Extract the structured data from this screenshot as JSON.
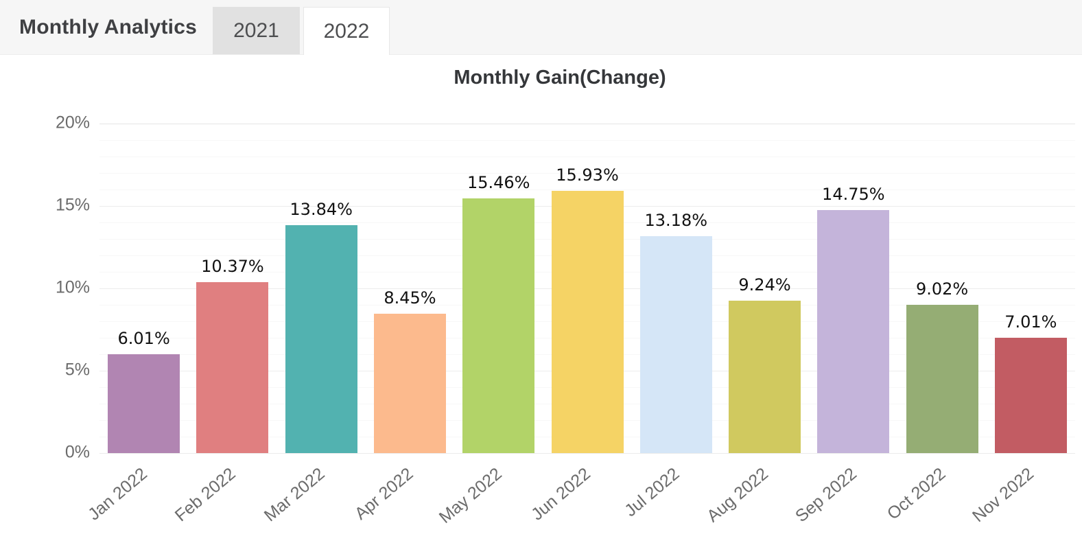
{
  "header": {
    "title": "Monthly Analytics",
    "tabs": [
      {
        "label": "2021",
        "active": false
      },
      {
        "label": "2022",
        "active": true
      }
    ]
  },
  "chart_data": {
    "type": "bar",
    "title": "Monthly Gain(Change)",
    "categories": [
      "Jan 2022",
      "Feb 2022",
      "Mar 2022",
      "Apr 2022",
      "May 2022",
      "Jun 2022",
      "Jul 2022",
      "Aug 2022",
      "Sep 2022",
      "Oct 2022",
      "Nov 2022"
    ],
    "values": [
      6.01,
      10.37,
      13.84,
      8.45,
      15.46,
      15.93,
      13.18,
      9.24,
      14.75,
      9.02,
      7.01
    ],
    "value_labels": [
      "6.01%",
      "10.37%",
      "13.84%",
      "8.45%",
      "15.46%",
      "15.93%",
      "13.18%",
      "9.24%",
      "14.75%",
      "9.02%",
      "7.01%"
    ],
    "bar_colors": [
      "#b185b2",
      "#e07f80",
      "#52b2b0",
      "#fcba8d",
      "#b2d368",
      "#f5d365",
      "#d5e6f7",
      "#d0c95f",
      "#c4b4da",
      "#95ad74",
      "#c25c63"
    ],
    "xlabel": "",
    "ylabel": "",
    "ylim": [
      0,
      20
    ],
    "y_ticks": [
      "0%",
      "5%",
      "10%",
      "15%",
      "20%"
    ],
    "y_tick_interval": 5,
    "minor_grid_interval": 1,
    "grid": "on",
    "legend": "none",
    "x_label_rotation_deg": -40
  },
  "theme": {
    "header_bg": "#f6f6f6",
    "header_border": "#ededed",
    "tab_inactive_bg": "#e1e1e1",
    "tab_active_bg": "#ffffff",
    "tab_border": "#e7e7e7",
    "title_text": "#3f4043",
    "axis_label_color": "#6b6b6b",
    "value_label_color": "#111111",
    "grid_major": "#ececec",
    "grid_minor": "#f7f7f7",
    "grid_top": "#e6e6e6"
  }
}
